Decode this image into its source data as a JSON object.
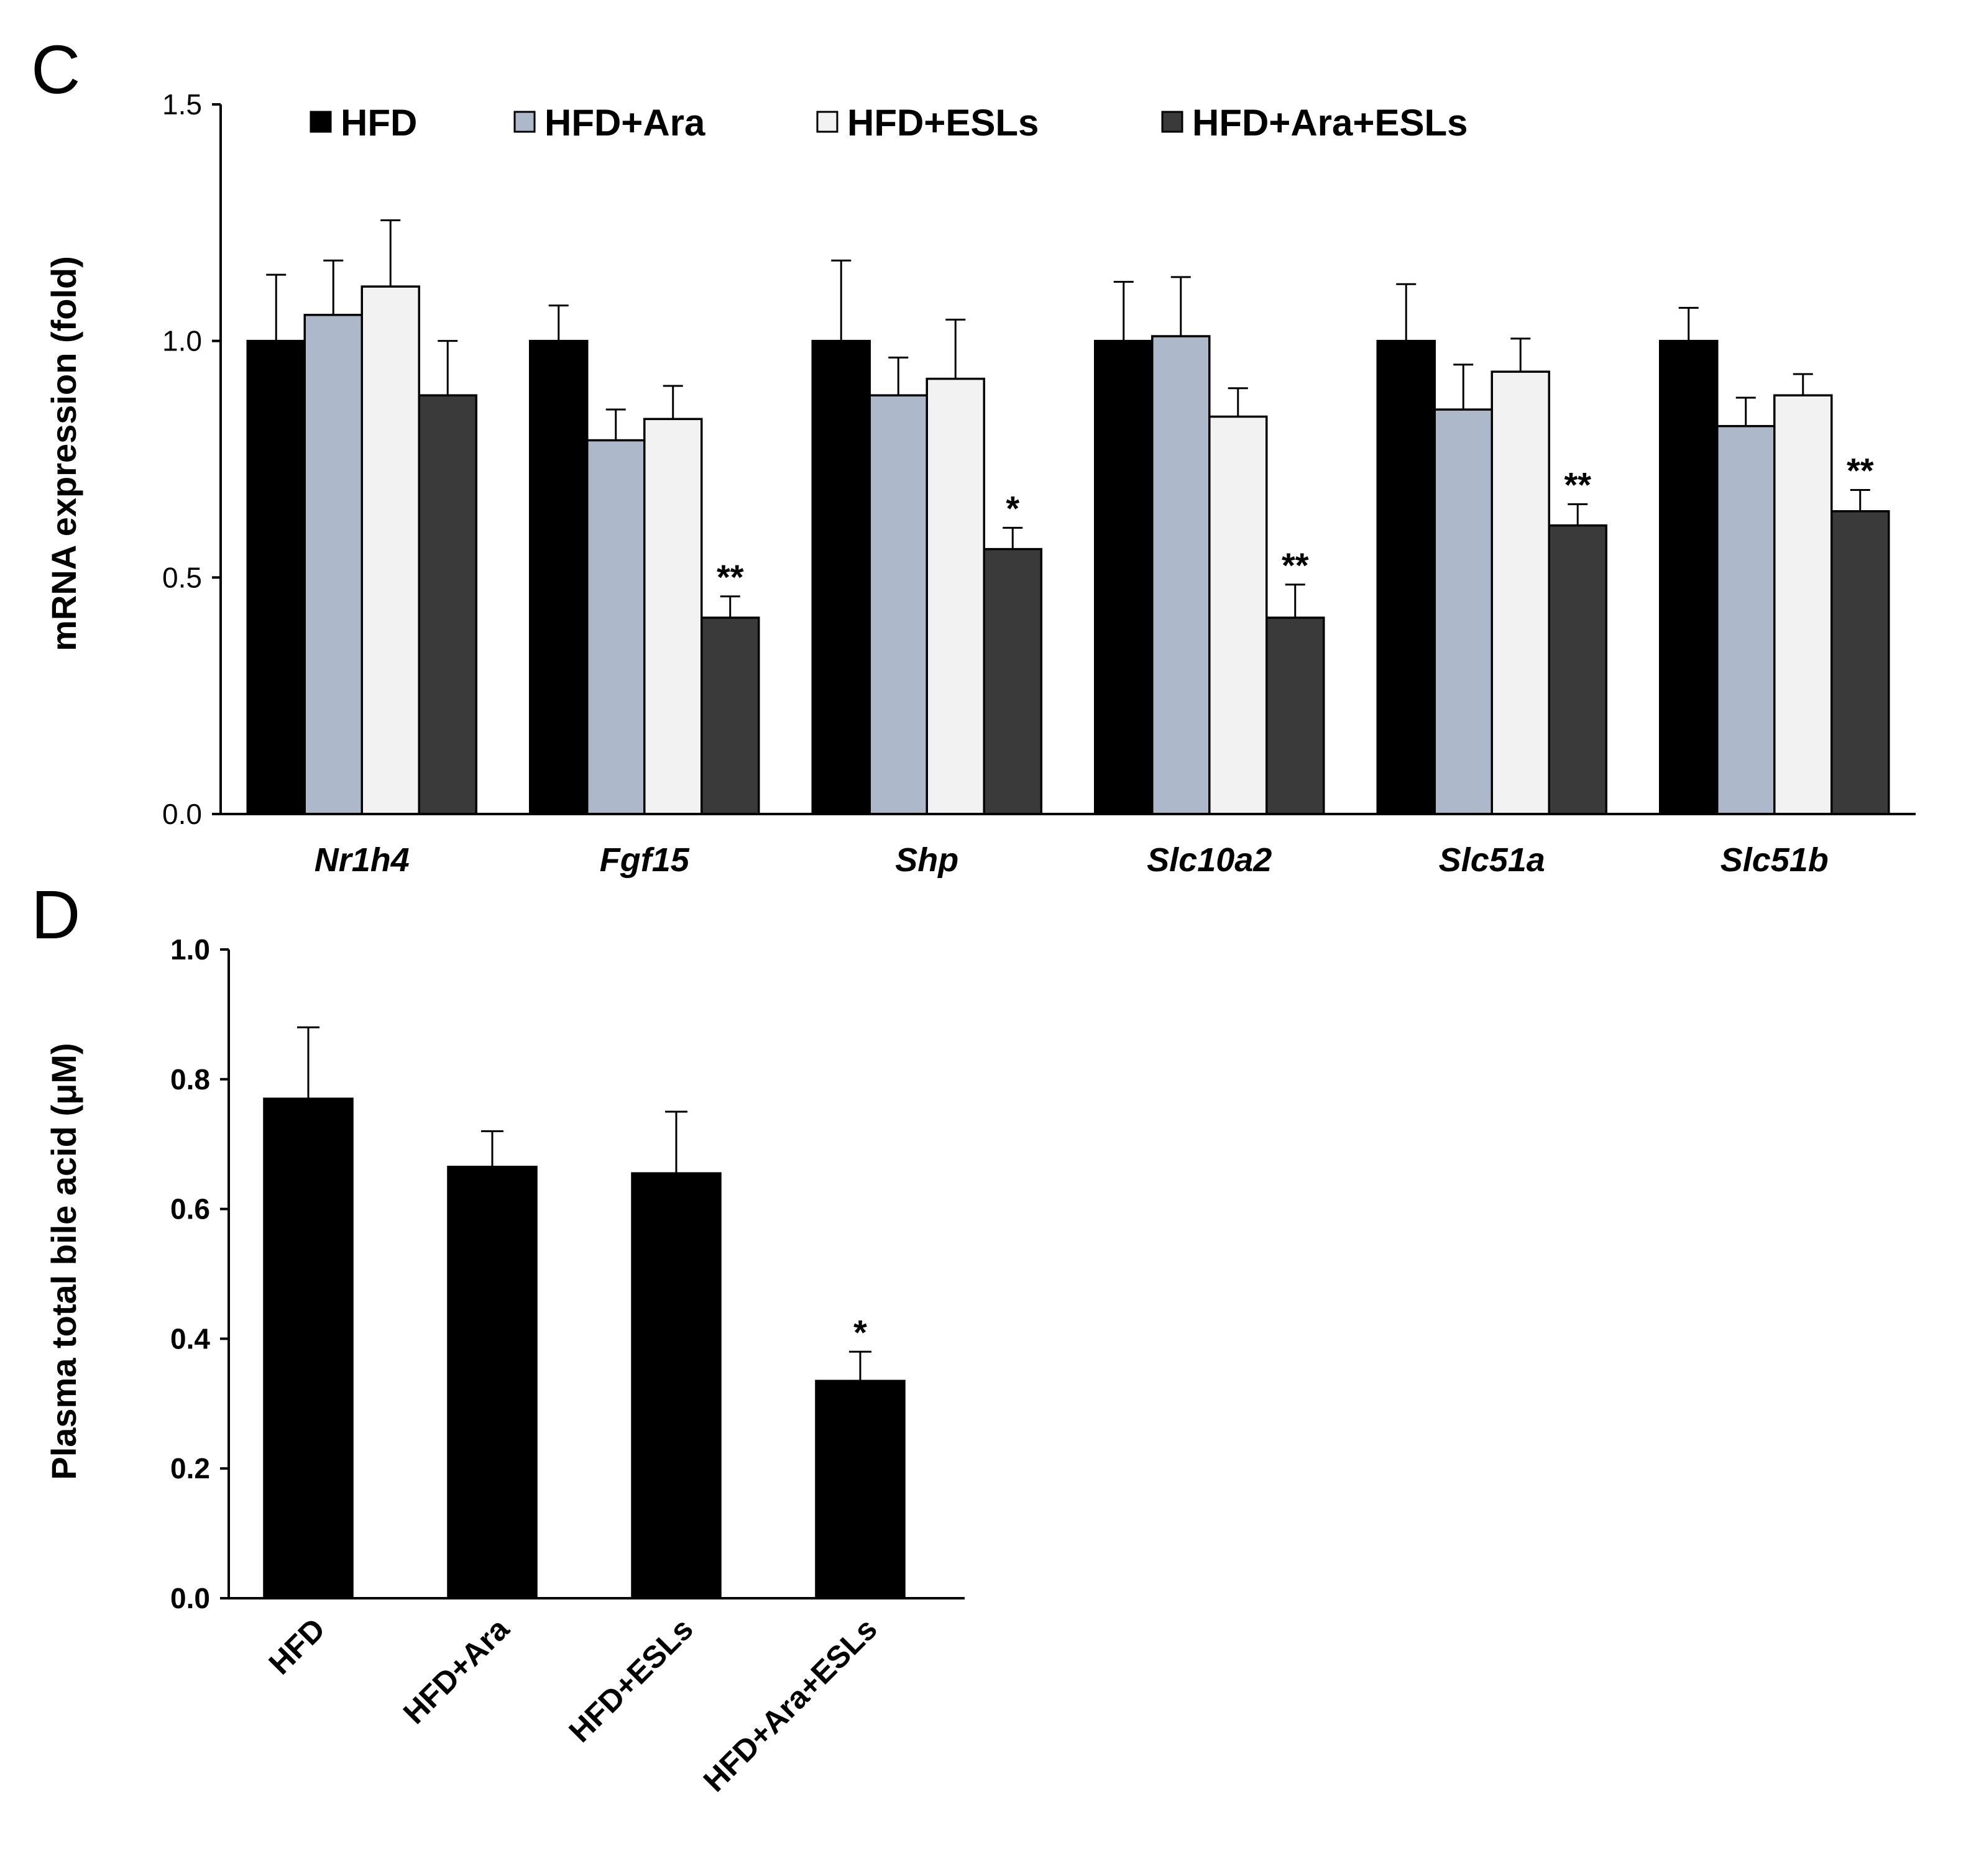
{
  "chart_data": [
    {
      "panel": "C",
      "type": "bar",
      "title": "",
      "xlabel": "",
      "ylabel": "mRNA expression (fold)",
      "ylim": [
        0,
        1.5
      ],
      "yticks": [
        "0.0",
        "0.5",
        "1.0",
        "1.5"
      ],
      "ytick_values": [
        0,
        0.5,
        1.0,
        1.5
      ],
      "legend_position": "top",
      "categories": [
        "Nr1h4",
        "Fgf15",
        "Shp",
        "Slc10a2",
        "Slc51a",
        "Slc51b"
      ],
      "series": [
        {
          "name": "HFD",
          "color": "#000000",
          "values": [
            1.0,
            1.0,
            1.0,
            1.0,
            1.0,
            1.0
          ],
          "errors": [
            0.14,
            0.075,
            0.17,
            0.125,
            0.12,
            0.07
          ]
        },
        {
          "name": "HFD+Ara",
          "color": "#adb9ca",
          "values": [
            1.055,
            0.79,
            0.885,
            1.01,
            0.855,
            0.82
          ],
          "errors": [
            0.115,
            0.065,
            0.08,
            0.125,
            0.095,
            0.06
          ]
        },
        {
          "name": "HFD+ESLs",
          "color": "#f2f2f2",
          "values": [
            1.115,
            0.835,
            0.92,
            0.84,
            0.935,
            0.885
          ],
          "errors": [
            0.14,
            0.07,
            0.125,
            0.06,
            0.07,
            0.045
          ]
        },
        {
          "name": "HFD+Ara+ESLs",
          "color": "#3a3a3a",
          "values": [
            0.885,
            0.415,
            0.56,
            0.415,
            0.61,
            0.64
          ],
          "errors": [
            0.115,
            0.045,
            0.045,
            0.07,
            0.045,
            0.045
          ]
        }
      ],
      "annotations": [
        {
          "category": "Nr1h4",
          "series": "HFD+Ara+ESLs",
          "text": ""
        },
        {
          "category": "Fgf15",
          "series": "HFD+Ara+ESLs",
          "text": "**"
        },
        {
          "category": "Shp",
          "series": "HFD+Ara+ESLs",
          "text": "*"
        },
        {
          "category": "Slc10a2",
          "series": "HFD+Ara+ESLs",
          "text": "**"
        },
        {
          "category": "Slc51a",
          "series": "HFD+Ara+ESLs",
          "text": "**"
        },
        {
          "category": "Slc51b",
          "series": "HFD+Ara+ESLs",
          "text": "**"
        }
      ]
    },
    {
      "panel": "D",
      "type": "bar",
      "title": "",
      "xlabel": "",
      "ylabel": "Plasma total bile acid (μM)",
      "ylim": [
        0,
        1.0
      ],
      "yticks": [
        "0.0",
        "0.2",
        "0.4",
        "0.6",
        "0.8",
        "1.0"
      ],
      "ytick_values": [
        0,
        0.2,
        0.4,
        0.6,
        0.8,
        1.0
      ],
      "categories": [
        "HFD",
        "HFD+Ara",
        "HFD+ESLs",
        "HFD+Ara+ESLs"
      ],
      "values": [
        0.77,
        0.665,
        0.655,
        0.335
      ],
      "errors": [
        0.11,
        0.055,
        0.095,
        0.045
      ],
      "color": "#000000",
      "annotations": [
        {
          "category": "HFD+Ara+ESLs",
          "text": "*"
        }
      ]
    }
  ]
}
